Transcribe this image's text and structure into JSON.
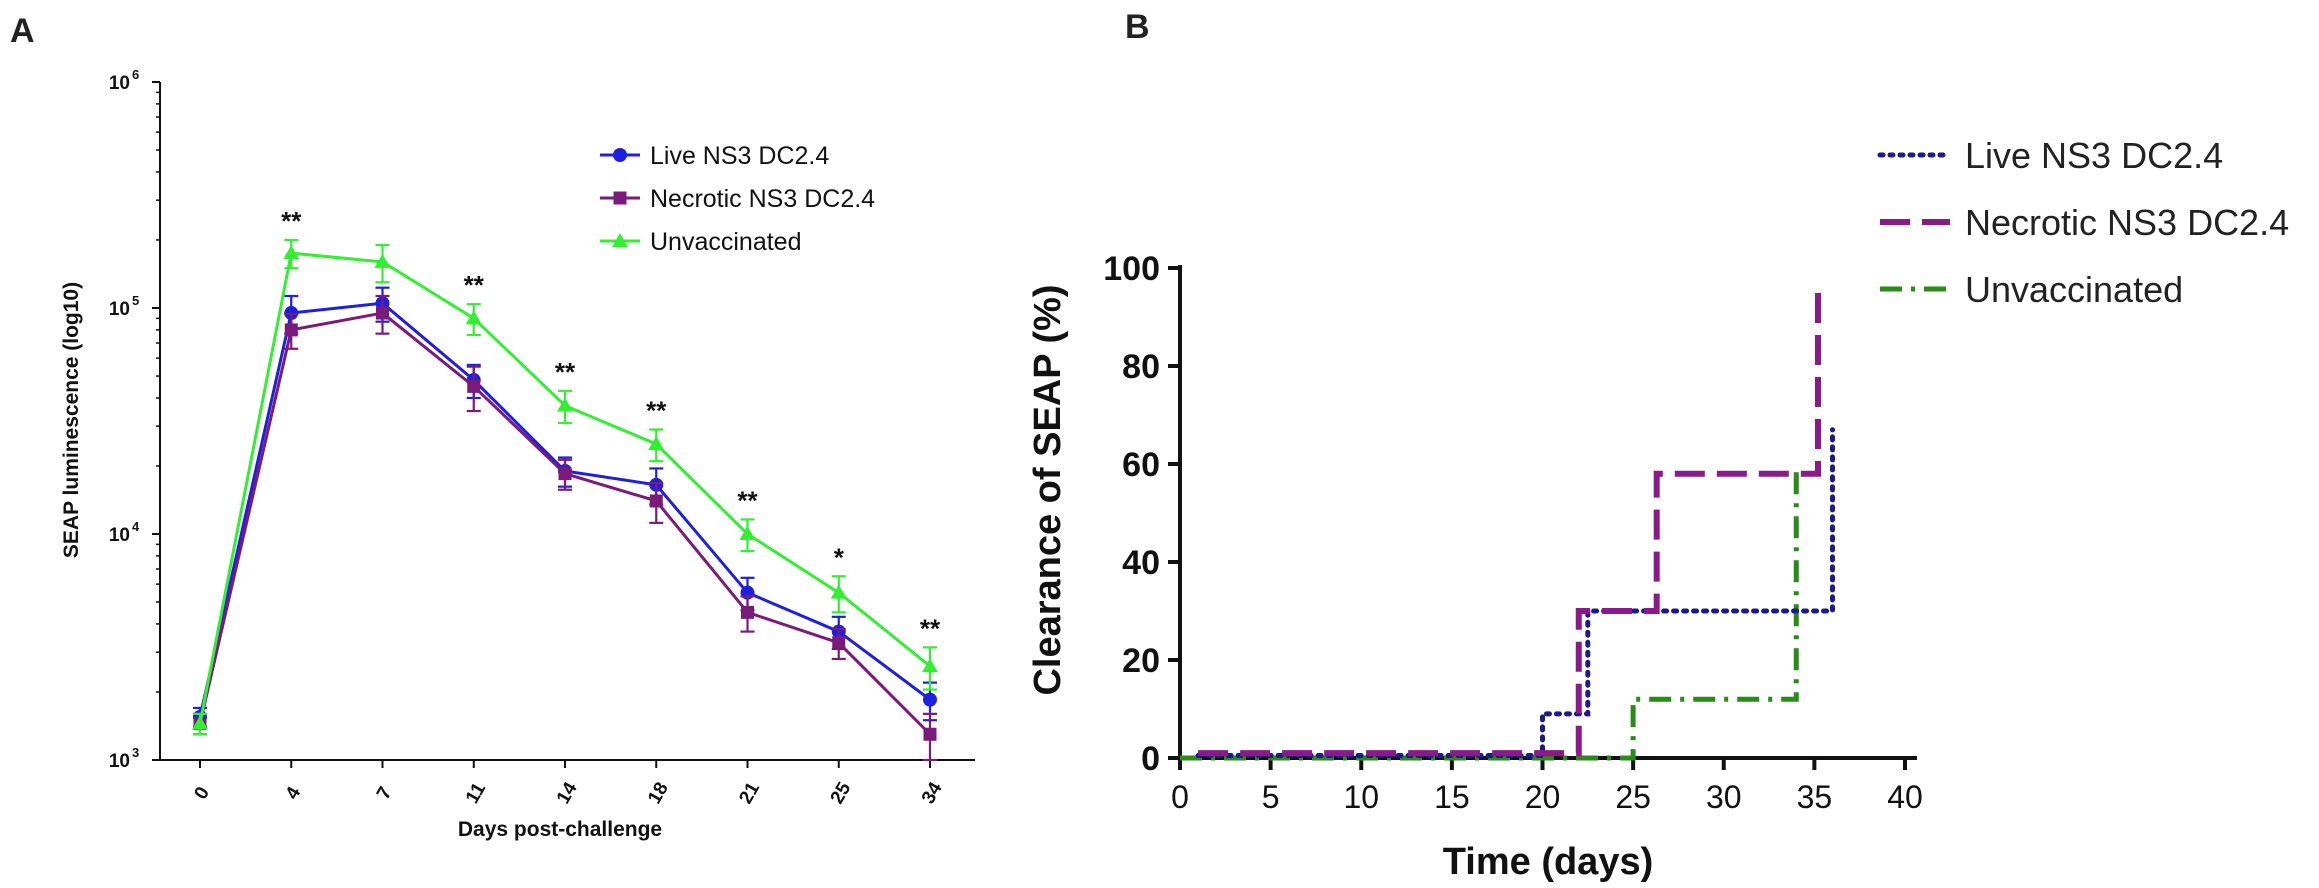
{
  "chart_data": [
    {
      "panel": "A",
      "type": "line",
      "xlabel": "Days post-challenge",
      "ylabel": "SEAP luminescence (log10)",
      "yscale": "log10",
      "ylim": [
        1000,
        1000000
      ],
      "ytick_base": "10",
      "ytick_exponents": [
        "3",
        "4",
        "5",
        "6"
      ],
      "categories": [
        "0",
        "4",
        "7",
        "11",
        "14",
        "18",
        "21",
        "25",
        "34"
      ],
      "series": [
        {
          "name": "Live NS3 DC2.4",
          "color": "#1f1fe0",
          "marker": "circle",
          "values": [
            1550,
            95000,
            105000,
            48000,
            19000,
            16500,
            5500,
            3700,
            1850
          ],
          "err": [
            150,
            18000,
            18000,
            8000,
            2800,
            3000,
            900,
            600,
            350
          ]
        },
        {
          "name": "Necrotic NS3 DC2.4",
          "color": "#7a1a7a",
          "marker": "square",
          "values": [
            1450,
            80000,
            95000,
            45000,
            18500,
            14000,
            4500,
            3300,
            1300
          ],
          "err": [
            150,
            14000,
            18000,
            10000,
            2800,
            2800,
            800,
            500,
            300
          ]
        },
        {
          "name": "Unvaccinated",
          "color": "#33ee33",
          "marker": "triangle",
          "values": [
            1450,
            175000,
            160000,
            90000,
            37000,
            25000,
            10000,
            5500,
            2600
          ],
          "err": [
            150,
            25000,
            30000,
            14000,
            6000,
            4000,
            1600,
            1000,
            550
          ]
        }
      ],
      "annotations": [
        {
          "category": "4",
          "text": "**"
        },
        {
          "category": "11",
          "text": "**"
        },
        {
          "category": "14",
          "text": "**"
        },
        {
          "category": "18",
          "text": "**"
        },
        {
          "category": "21",
          "text": "**"
        },
        {
          "category": "25",
          "text": "*"
        },
        {
          "category": "34",
          "text": "**"
        }
      ]
    },
    {
      "panel": "B",
      "type": "line",
      "subtype": "step",
      "xlabel": "Time (days)",
      "ylabel": "Clearance of SEAP (%)",
      "xlim": [
        0,
        40
      ],
      "ylim": [
        0,
        100
      ],
      "xticks": [
        0,
        5,
        10,
        15,
        20,
        25,
        30,
        35,
        40
      ],
      "yticks": [
        0,
        20,
        40,
        60,
        80,
        100
      ],
      "series": [
        {
          "name": "Live NS3 DC2.4",
          "color": "#1a1a8c",
          "dash": "dotted",
          "x": [
            1,
            20,
            20,
            22.5,
            22.5,
            36,
            36
          ],
          "y": [
            0.5,
            0.5,
            9,
            9,
            30,
            30,
            67
          ]
        },
        {
          "name": "Necrotic NS3 DC2.4",
          "color": "#8a1a8a",
          "dash": "dashed",
          "x": [
            1,
            22,
            22,
            26.3,
            26.3,
            35.2,
            35.2
          ],
          "y": [
            1,
            1,
            30,
            30,
            58,
            58,
            95
          ]
        },
        {
          "name": "Unvaccinated",
          "color": "#2a8a1a",
          "dash": "dash-dot",
          "x": [
            0,
            25,
            25,
            34,
            34
          ],
          "y": [
            0,
            0,
            12,
            12,
            60
          ]
        }
      ]
    }
  ],
  "panels": {
    "a_label": "A",
    "b_label": "B"
  }
}
